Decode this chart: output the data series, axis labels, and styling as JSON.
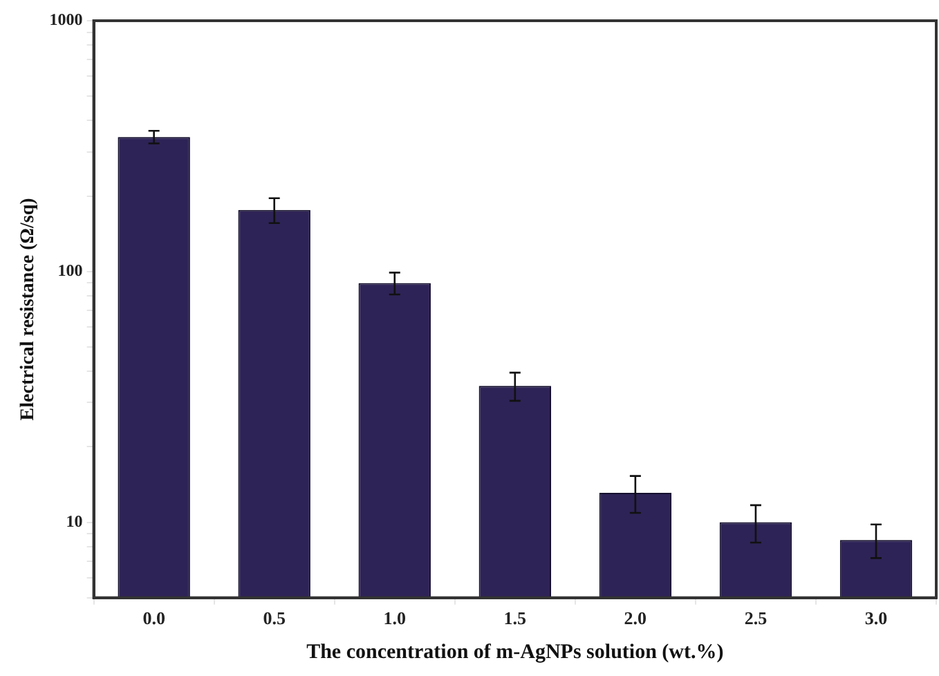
{
  "chart_data": {
    "type": "bar",
    "xlabel": "The concentration of m-AgNPs solution (wt.%)",
    "ylabel": "Electrical resistance (Ω/sq)",
    "categories": [
      "0.0",
      "0.5",
      "1.0",
      "1.5",
      "2.0",
      "2.5",
      "3.0"
    ],
    "values": [
      344,
      176,
      90,
      35,
      13.1,
      10,
      8.5
    ],
    "errors": [
      20,
      20,
      9,
      4.5,
      2.2,
      1.7,
      1.3
    ],
    "color": "#2e2356",
    "log": true,
    "ylim": [
      5,
      1000
    ],
    "yticks": [
      {
        "value": 5,
        "label": null
      },
      {
        "value": 6,
        "label": null
      },
      {
        "value": 7,
        "label": null
      },
      {
        "value": 8,
        "label": null
      },
      {
        "value": 9,
        "label": null
      },
      10,
      {
        "value": 20,
        "label": null
      },
      {
        "value": 30,
        "label": null
      },
      {
        "value": 40,
        "label": null
      },
      {
        "value": 50,
        "label": null
      },
      {
        "value": 60,
        "label": null
      },
      {
        "value": 70,
        "label": null
      },
      {
        "value": 80,
        "label": null
      },
      {
        "value": 90,
        "label": null
      },
      100,
      {
        "value": 200,
        "label": null
      },
      {
        "value": 300,
        "label": null
      },
      {
        "value": 400,
        "label": null
      },
      {
        "value": 500,
        "label": null
      },
      {
        "value": 600,
        "label": null
      },
      {
        "value": 700,
        "label": null
      },
      {
        "value": 800,
        "label": null
      },
      {
        "value": 900,
        "label": null
      },
      1000
    ],
    "grid": false,
    "legend": false
  }
}
